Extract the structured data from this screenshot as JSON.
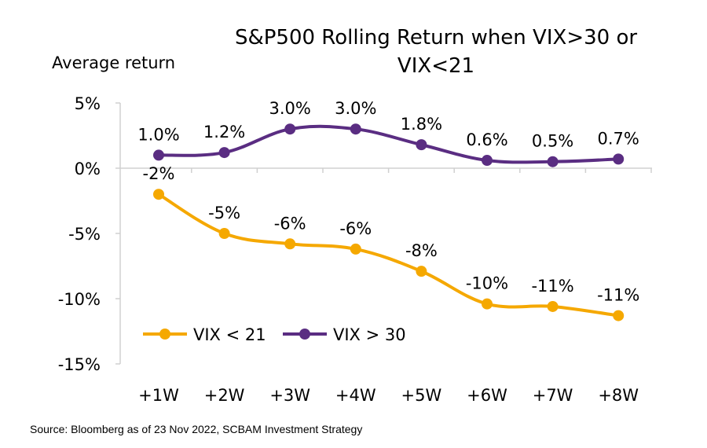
{
  "chart_data": {
    "type": "line",
    "title": "S&P500 Rolling Return when VIX>30 or VIX<21",
    "title_lines": [
      "S&P500 Rolling Return when VIX>30 or",
      "VIX<21"
    ],
    "ylabel": "Average return",
    "xlabel": "",
    "categories": [
      "+1W",
      "+2W",
      "+3W",
      "+4W",
      "+5W",
      "+6W",
      "+7W",
      "+8W"
    ],
    "ylim": [
      -15,
      5
    ],
    "yticks": [
      5,
      0,
      -5,
      -10,
      -15
    ],
    "ytick_labels": [
      "5%",
      "0%",
      "-5%",
      "-10%",
      "-15%"
    ],
    "grid": false,
    "legend_position": "bottom-left",
    "series": [
      {
        "name": "VIX < 21",
        "color": "#F5A800",
        "values": [
          -2.0,
          -5.0,
          -5.8,
          -6.2,
          -7.9,
          -10.4,
          -10.6,
          -11.3
        ],
        "labels": [
          "-2%",
          "-5%",
          "-6%",
          "-6%",
          "-8%",
          "-10%",
          "-11%",
          "-11%"
        ]
      },
      {
        "name": "VIX > 30",
        "color": "#5A2D82",
        "values": [
          1.0,
          1.2,
          3.0,
          3.0,
          1.8,
          0.6,
          0.5,
          0.7
        ],
        "labels": [
          "1.0%",
          "1.2%",
          "3.0%",
          "3.0%",
          "1.8%",
          "0.6%",
          "0.5%",
          "0.7%"
        ]
      }
    ]
  },
  "source": "Source: Bloomberg as of 23 Nov 2022, SCBAM Investment Strategy"
}
